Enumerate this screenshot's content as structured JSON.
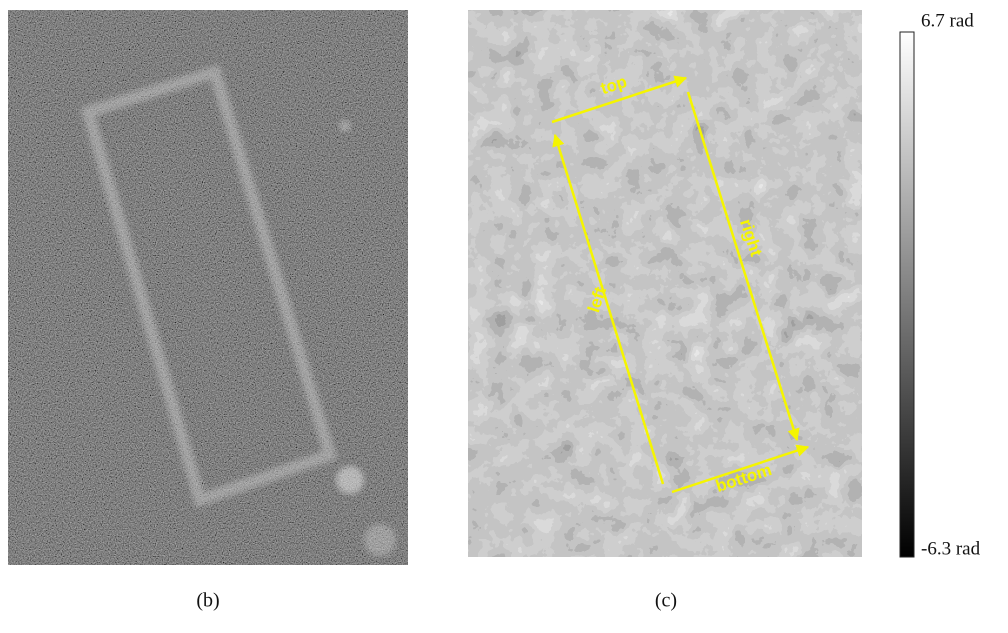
{
  "panels": [
    {
      "caption": "(b)"
    },
    {
      "caption": "(c)",
      "arrows": [
        "top",
        "right",
        "left",
        "bottom"
      ],
      "colorbar": {
        "max_label": "6.7 rad",
        "min_label": "-6.3 rad"
      }
    }
  ]
}
